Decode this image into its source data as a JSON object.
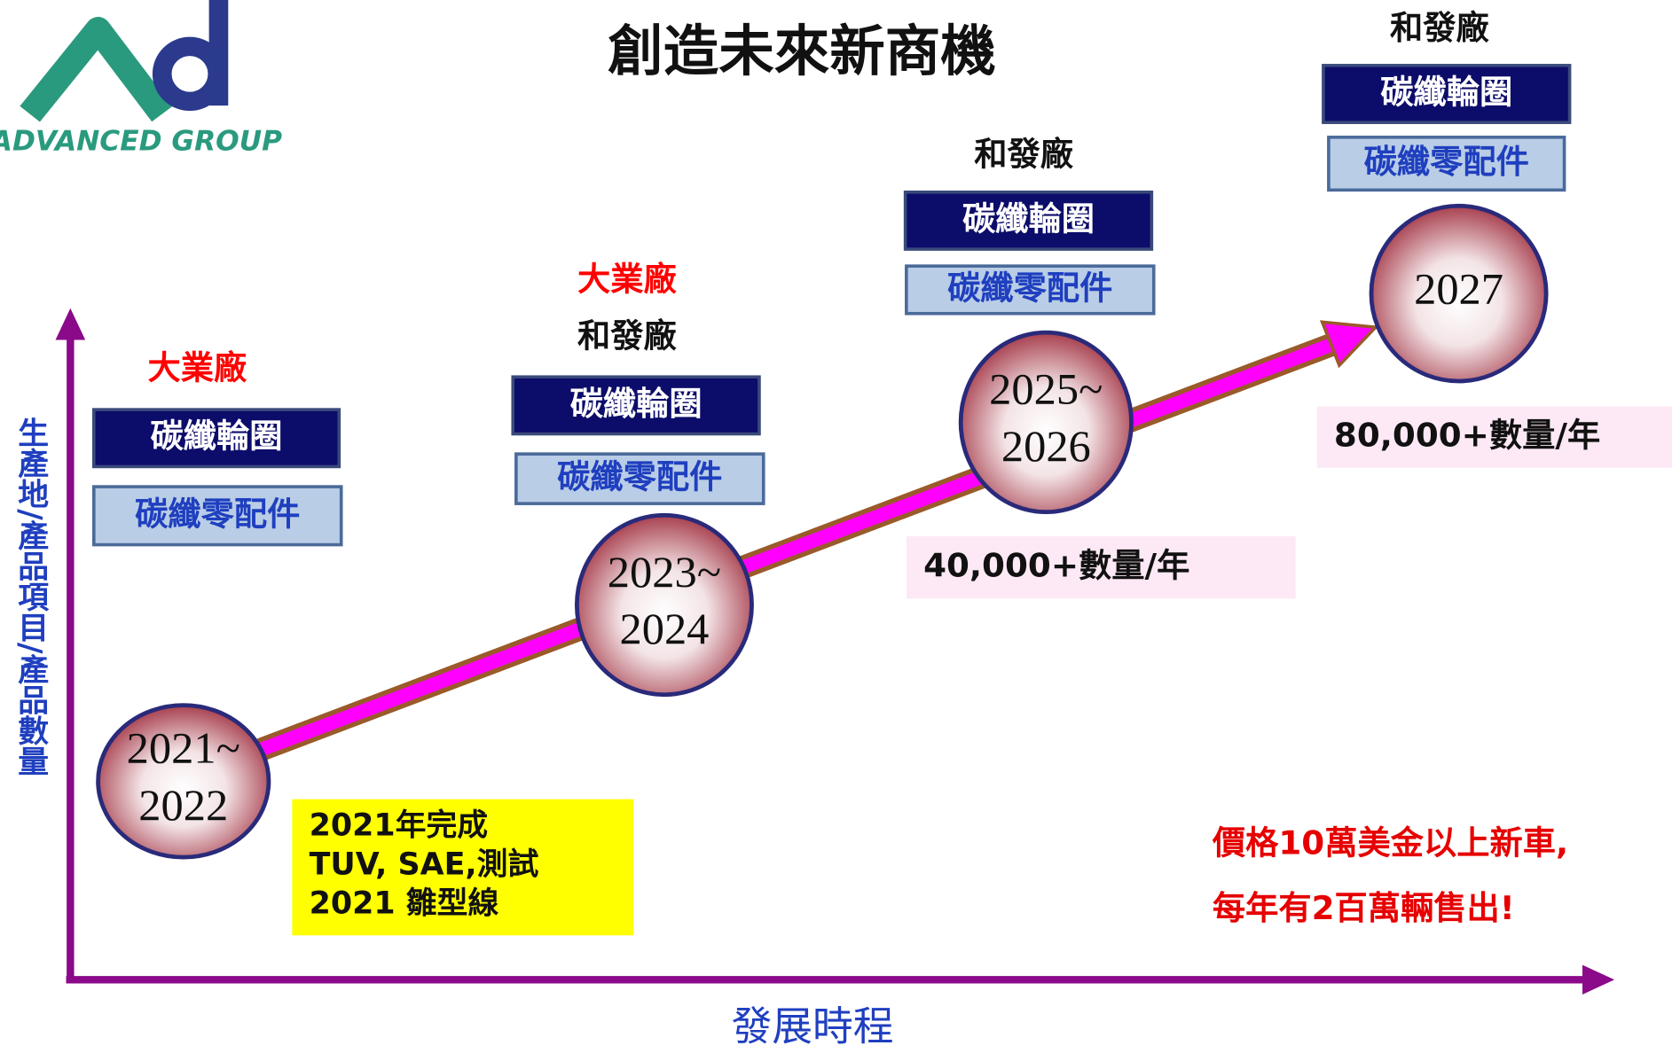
{
  "title": "創造未來新商機",
  "logo": {
    "text": "ADVANCED GROUP"
  },
  "y_axis_label": "生產地/產品項目/產品數量",
  "x_axis_label": "發展時程",
  "stages": [
    {
      "period": [
        "2021~",
        "2022"
      ],
      "factories": [
        {
          "name": "大業廠",
          "color": "#ff0000"
        }
      ],
      "products": [
        "碳纖輪圈",
        "碳纖零配件"
      ]
    },
    {
      "period": [
        "2023~",
        "2024"
      ],
      "factories": [
        {
          "name": "大業廠",
          "color": "#ff0000"
        },
        {
          "name": "和發廠",
          "color": "#111111"
        }
      ],
      "products": [
        "碳纖輪圈",
        "碳纖零配件"
      ]
    },
    {
      "period": [
        "2025~",
        "2026"
      ],
      "factories": [
        {
          "name": "和發廠",
          "color": "#111111"
        }
      ],
      "products": [
        "碳纖輪圈",
        "碳纖零配件"
      ],
      "volume": "40,000+數量/年"
    },
    {
      "period": [
        "2027"
      ],
      "factories": [
        {
          "name": "和發廠",
          "color": "#111111"
        }
      ],
      "products": [
        "碳纖輪圈",
        "碳纖零配件"
      ],
      "volume": "80,000+數量/年"
    }
  ],
  "milestone_note": [
    "2021年完成",
    "TUV, SAE,測試",
    "2021 雛型線"
  ],
  "market_note": [
    "價格10萬美金以上新車,",
    "每年有2百萬輛售出!"
  ]
}
